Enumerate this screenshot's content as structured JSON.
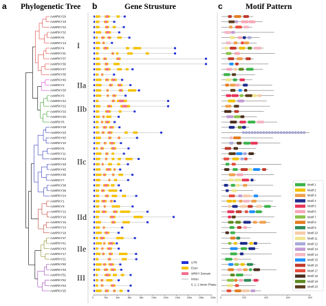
{
  "panels": {
    "a": {
      "letter": "a",
      "title": "Phylogenetic Tree"
    },
    "b": {
      "letter": "b",
      "title": "Gene Strusture"
    },
    "c": {
      "letter": "c",
      "title": "Motif Pattern"
    }
  },
  "genes": [
    "AoWRKY29",
    "AoWRKY19",
    "AoWRKY34",
    "AoWRKY32",
    "AoWRKY6",
    "AoWRKY13",
    "AoWRKY4",
    "AoWRKY31",
    "AoWRKY37",
    "AoWRKY36",
    "AoWRKY47",
    "AoWRKY35",
    "AoWRKY46",
    "AoWRKY2",
    "AoWRKY30",
    "AoWRKY3",
    "AoWRKY42",
    "AoWRKY22",
    "AoWRKY33",
    "AoWRKY20",
    "AoWRKY8",
    "AoWRKY28",
    "AoWRKY23",
    "AoWRKY40",
    "AoWRKY10",
    "AoWRKY5",
    "AoWRKY11",
    "AoWRKY44",
    "AoWRKY48",
    "AoWRKY45",
    "AoWRKY26",
    "AoWRKY7",
    "AoWRKY38",
    "AoWRKY39",
    "AoWRKY24",
    "AoWRKY1",
    "AoWRKY9",
    "AoWRKY12",
    "AoWRKY16",
    "AoWRKY15",
    "AoWRKY14",
    "AoWRKY18",
    "AoWRKY27",
    "AoWRKY41",
    "AoWRKY43",
    "AoWRKY17",
    "AoWRKY21",
    "AoWRKY50",
    "AoWRKY49",
    "AoWRKY51",
    "AoWRKY52",
    "AoWRKY53",
    "AoWRKY25"
  ],
  "groups": [
    {
      "label": "I",
      "color": "#e0413a",
      "start": 0,
      "end": 11
    },
    {
      "label": "IIa",
      "color": "#d43fd6",
      "start": 12,
      "end": 14
    },
    {
      "label": "IIb",
      "color": "#3a9a2a",
      "start": 15,
      "end": 20
    },
    {
      "label": "IIc",
      "color": "#2b36b8",
      "start": 21,
      "end": 34
    },
    {
      "label": "IId",
      "color": "#c0392b",
      "start": 35,
      "end": 41
    },
    {
      "label": "IIe",
      "color": "#8a8a1f",
      "start": 42,
      "end": 46
    },
    {
      "label": "III",
      "color": "#9b3fb5",
      "start": 47,
      "end": 52
    }
  ],
  "gene_structure_legend": [
    {
      "label": "UTR",
      "color": "#1f2fd6"
    },
    {
      "label": "Exon",
      "color": "#f5c100"
    },
    {
      "label": "WRKY Domain",
      "color": "#f26d8a"
    },
    {
      "label": "Intron",
      "color": "#999999"
    },
    {
      "label": "0, 1, 2   Intron Phase",
      "color": "#ff6a00"
    }
  ],
  "gene_axis_ticks": [
    "0",
    "2kb",
    "4kb",
    "6kb",
    "8kb",
    "10kb",
    "12kb",
    "14kb",
    "16kb",
    "18kb",
    "20kb"
  ],
  "motif_axis_ticks": [
    "0",
    "200",
    "400",
    "600",
    "800"
  ],
  "motif_legend": [
    {
      "label": "Motif 1",
      "color": "#3bb34a"
    },
    {
      "label": "Motif 2",
      "color": "#f2c100"
    },
    {
      "label": "Motif 3",
      "color": "#f0a04b"
    },
    {
      "label": "Motif 4",
      "color": "#1d2a8c"
    },
    {
      "label": "Motif 5",
      "color": "#e8345a"
    },
    {
      "label": "Motif 6",
      "color": "#f7a6b8"
    },
    {
      "label": "Motif 7",
      "color": "#8bc34a"
    },
    {
      "label": "Motif 8",
      "color": "#e67e22"
    },
    {
      "label": "Motif 9",
      "color": "#2e8b57"
    },
    {
      "label": "Motif 10",
      "color": "#f5cba7"
    },
    {
      "label": "Motif 11",
      "color": "#f0e68c"
    },
    {
      "label": "Motif 12",
      "color": "#a9a9d9"
    },
    {
      "label": "Motif 13",
      "color": "#c39bd3"
    },
    {
      "label": "Motif 14",
      "color": "#f4b6c2"
    },
    {
      "label": "Motif 15",
      "color": "#1e90ff"
    },
    {
      "label": "Motif 16",
      "color": "#c0392b"
    },
    {
      "label": "Motif 17",
      "color": "#e74c3c"
    },
    {
      "label": "Motif 18",
      "color": "#4b2e1e"
    },
    {
      "label": "Motif 19",
      "color": "#5d8a1e"
    },
    {
      "label": "Motif 20",
      "color": "#5a3d1e"
    }
  ]
}
